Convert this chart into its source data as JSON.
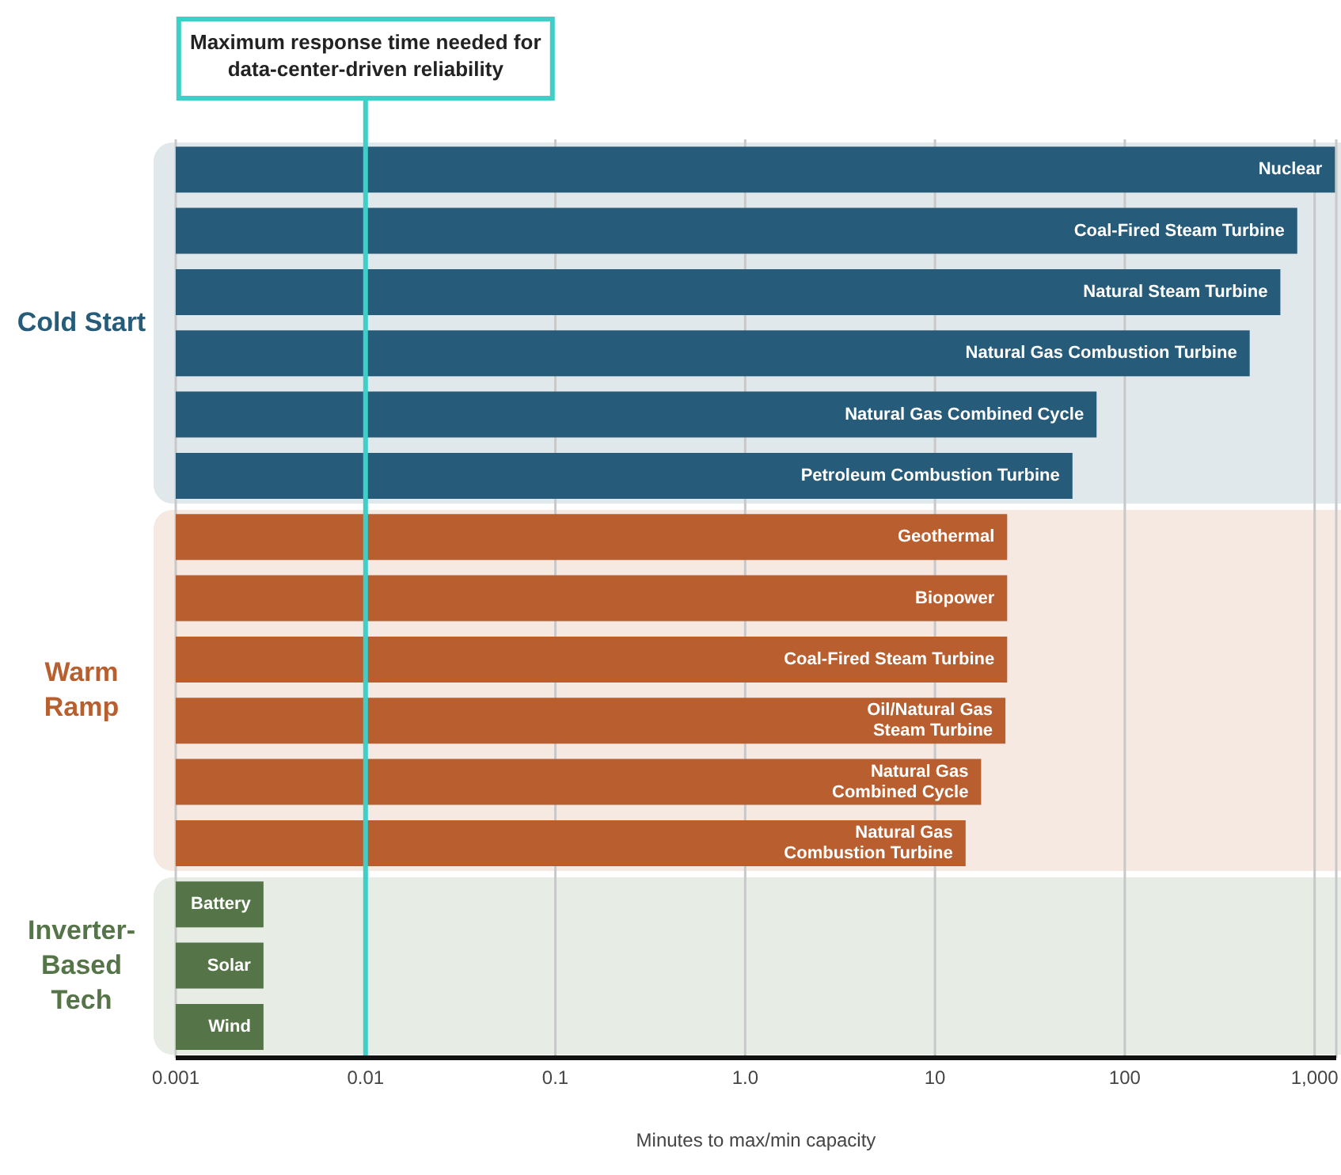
{
  "chart_data": {
    "type": "bar",
    "orientation": "horizontal",
    "log": "x",
    "xlabel": "Minutes to max/min capacity",
    "categories": [
      "Nuclear",
      "Coal-Fired Steam Turbine",
      "Natural Steam Turbine",
      "Natural Gas Combustion Turbine",
      "Natural Gas Combined Cycle",
      "Petroleum Combustion Turbine",
      "Geothermal",
      "Biopower",
      "Coal-Fired Steam Turbine",
      "Oil/Natural Gas Steam Turbine",
      "Natural Gas Combined Cycle",
      "Natural Gas Combustion Turbine",
      "Battery",
      "Solar",
      "Wind"
    ],
    "values": [
      1280,
      810,
      660,
      455,
      71,
      53,
      24,
      24,
      24,
      23.5,
      17.5,
      14.5,
      0.0029,
      0.0029,
      0.0029
    ],
    "colors": [
      "#275b7a",
      "#275b7a",
      "#275b7a",
      "#275b7a",
      "#275b7a",
      "#275b7a",
      "#b95f2f",
      "#b95f2f",
      "#b95f2f",
      "#b95f2f",
      "#b95f2f",
      "#b95f2f",
      "#557548",
      "#557548",
      "#557548"
    ],
    "xlim": [
      0.001,
      1300
    ],
    "xticks": [
      {
        "value": 0.001,
        "label": "0.001"
      },
      {
        "value": 0.01,
        "label": "0.01"
      },
      {
        "value": 0.1,
        "label": "0.1"
      },
      {
        "value": 1,
        "label": "1.0"
      },
      10,
      100,
      {
        "value": 1000,
        "label": "1,000"
      }
    ],
    "grid": "x",
    "legend": false,
    "annotations": [
      "Cold Start",
      "Warm Ramp",
      "Inverter-Based Tech"
    ],
    "ref_lines": [
      {
        "axis": "x",
        "value": 0.01,
        "label": "Maximum response time needed for data-center-driven reliability",
        "color": "#3ecfc9"
      }
    ]
  }
}
